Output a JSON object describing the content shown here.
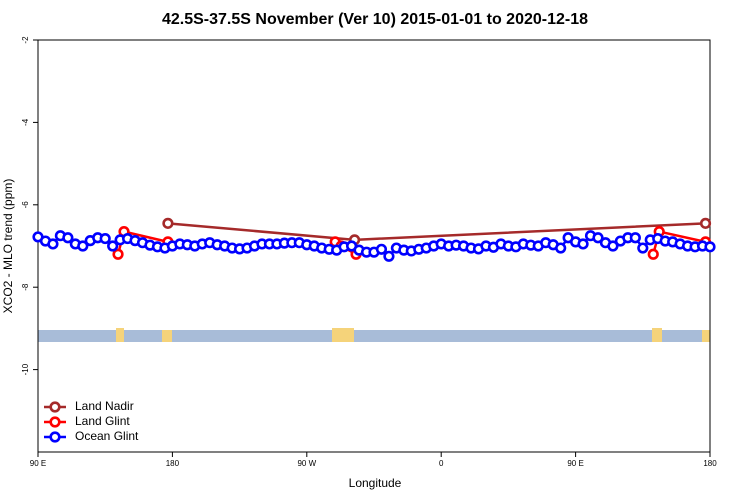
{
  "chart_data": {
    "type": "line",
    "title": "42.5S-37.5S November (Ver 10)   2015-01-01 to 2020-12-18",
    "x_label": "Longitude",
    "y_label": "XCO2 - MLO trend (ppm)",
    "xlim": [
      90,
      540
    ],
    "ylim": [
      -12,
      -2
    ],
    "xticks": [
      {
        "value": 90,
        "label": "90 E"
      },
      180,
      {
        "value": 270,
        "label": "90 W"
      },
      {
        "value": 360,
        "label": "0"
      },
      {
        "value": 450,
        "label": "90 E"
      },
      {
        "value": 540,
        "label": "180"
      }
    ],
    "yticks": [
      -2,
      -4,
      -6,
      -8,
      -10
    ],
    "legend": "lower left",
    "series": [
      {
        "name": "Land Nadir",
        "color": "#a52a2a",
        "x": [
          177,
          302,
          537
        ],
        "values": [
          -6.45,
          -6.85,
          -6.45
        ]
      },
      {
        "name": "Land Glint",
        "color": "#ff0000",
        "x": [
          143.6,
          147.6,
          177,
          null,
          289,
          293,
          303,
          null,
          502,
          506,
          537
        ],
        "values": [
          -7.2,
          -6.65,
          -6.9,
          null,
          -6.9,
          -7.0,
          -7.2,
          null,
          -7.2,
          -6.65,
          -6.9
        ]
      },
      {
        "name": "Ocean Glint",
        "color": "#0000ff",
        "x": [
          90,
          95,
          100,
          105,
          110,
          115,
          120,
          125,
          130,
          135,
          140,
          145,
          150,
          155,
          160,
          165,
          170,
          175,
          180,
          185,
          190,
          195,
          200,
          205,
          210,
          215,
          220,
          225,
          230,
          235,
          240,
          245,
          250,
          255,
          260,
          265,
          270,
          275,
          280,
          285,
          290,
          295,
          300,
          305,
          310,
          315,
          320,
          325,
          330,
          335,
          340,
          345,
          350,
          355,
          360,
          365,
          370,
          375,
          380,
          385,
          390,
          395,
          400,
          405,
          410,
          415,
          420,
          425,
          430,
          435,
          440,
          445,
          450,
          455,
          460,
          465,
          470,
          475,
          480,
          485,
          490,
          495,
          500,
          505,
          510,
          515,
          520,
          525,
          530,
          535,
          540
        ],
        "values": [
          -6.78,
          -6.88,
          -6.95,
          -6.75,
          -6.8,
          -6.95,
          -7.0,
          -6.87,
          -6.8,
          -6.82,
          -7.0,
          -6.85,
          -6.82,
          -6.87,
          -6.92,
          -6.98,
          -7.02,
          -7.05,
          -7.0,
          -6.95,
          -6.97,
          -7.0,
          -6.95,
          -6.92,
          -6.97,
          -7.0,
          -7.05,
          -7.07,
          -7.05,
          -7.0,
          -6.95,
          -6.95,
          -6.95,
          -6.93,
          -6.92,
          -6.92,
          -6.97,
          -7.0,
          -7.05,
          -7.08,
          -7.1,
          -7.02,
          -7.0,
          -7.1,
          -7.15,
          -7.15,
          -7.08,
          -7.25,
          -7.05,
          -7.1,
          -7.12,
          -7.08,
          -7.05,
          -7.0,
          -6.95,
          -7.0,
          -6.98,
          -7.0,
          -7.05,
          -7.07,
          -7.0,
          -7.03,
          -6.95,
          -7.0,
          -7.02,
          -6.95,
          -6.98,
          -7.0,
          -6.92,
          -6.97,
          -7.05,
          -6.8,
          -6.9,
          -6.95,
          -6.75,
          -6.8,
          -6.92,
          -7.0,
          -6.88,
          -6.8,
          -6.8,
          -7.05,
          -6.85,
          -6.82,
          -6.88,
          -6.9,
          -6.95,
          -7.0,
          -7.02,
          -7.0,
          -7.02
        ]
      }
    ]
  }
}
